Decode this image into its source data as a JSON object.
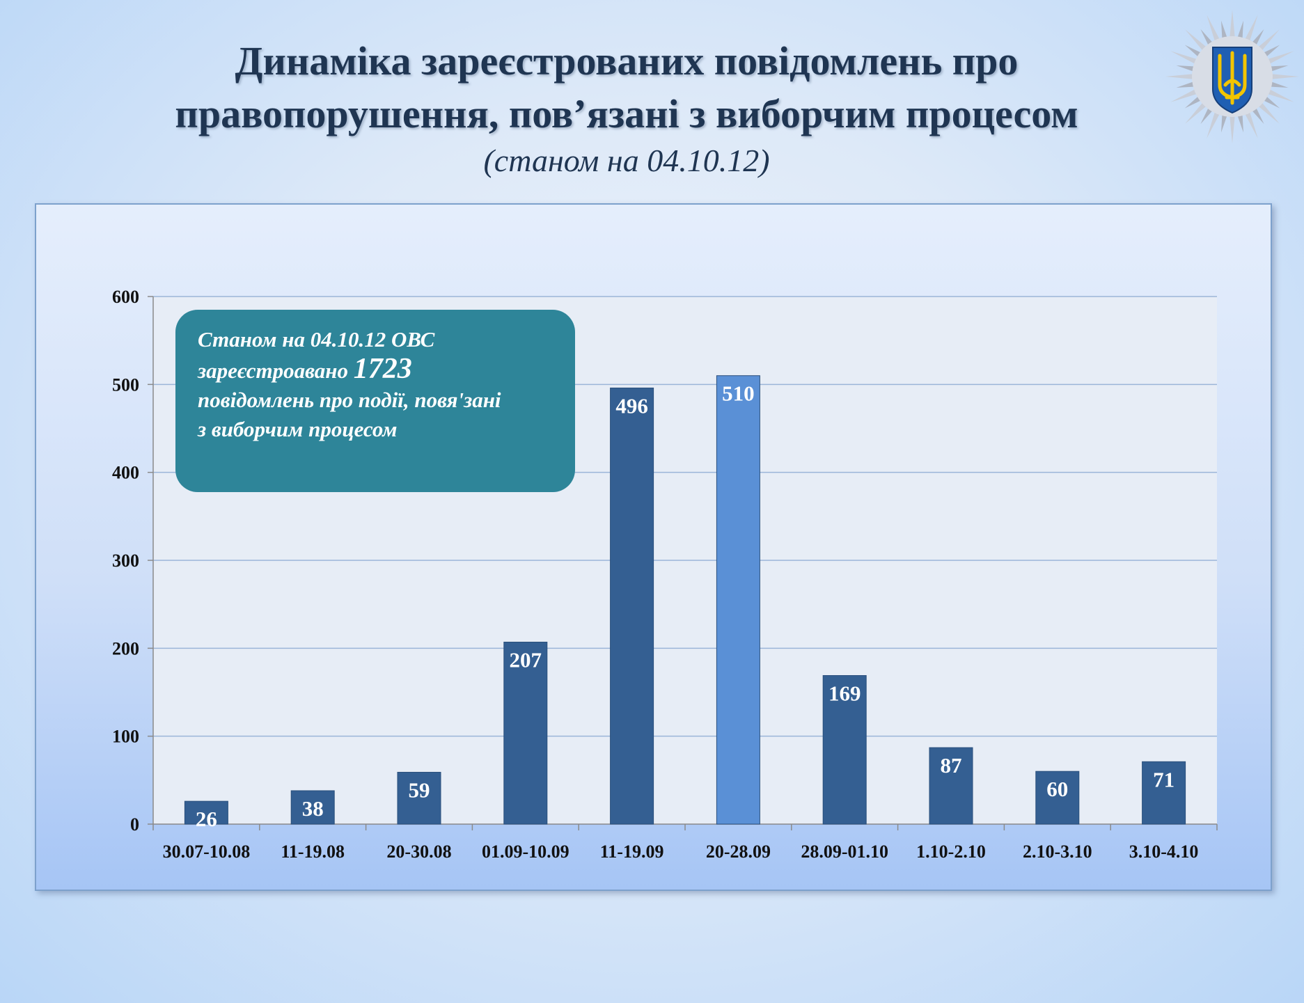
{
  "title_line1": "Динаміка зареєстрованих повідомлень про",
  "title_line2": "правопорушення,  пов’язані з виборчим процесом",
  "subtitle": "(станом на 04.10.12)",
  "callout": {
    "line1": "Станом на 04.10.12   ОВС",
    "line2_prefix": "зареєстроавано ",
    "line2_number": "1723",
    "line3": "повідомлень  про події, повя'зані",
    "line4": "з виборчим процесом"
  },
  "emblem": {
    "icon": "trident-star-emblem-icon",
    "shield_color": "#1f5fb3",
    "trident_color": "#f2c500"
  },
  "chart_data": {
    "type": "bar",
    "categories": [
      "30.07-10.08",
      "11-19.08",
      "20-30.08",
      "01.09-10.09",
      "11-19.09",
      "20-28.09",
      "28.09-01.10",
      "1.10-2.10",
      "2.10-3.10",
      "3.10-4.10"
    ],
    "values": [
      26,
      38,
      59,
      207,
      496,
      510,
      169,
      87,
      60,
      71
    ],
    "ylim": [
      0,
      600
    ],
    "yticks": [
      0,
      100,
      200,
      300,
      400,
      500,
      600
    ],
    "highlight_index": 5,
    "bar_color": "#345f92",
    "highlight_color": "#5a90d6",
    "grid": true,
    "title": "",
    "xlabel": "",
    "ylabel": ""
  }
}
